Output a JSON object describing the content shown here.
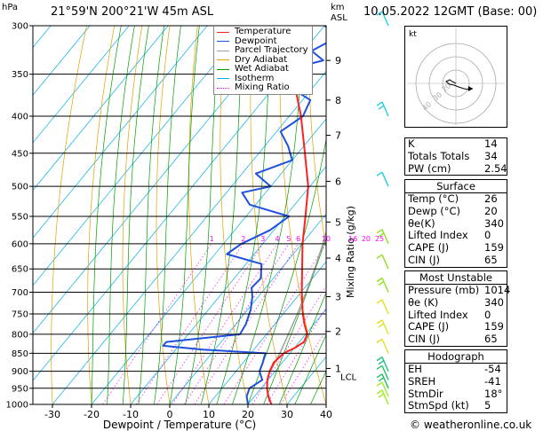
{
  "header": {
    "station": "21°59'N  200°21'W  45m  ASL",
    "datetime": "10.05.2022  12GMT  (Base: 00)",
    "pressure_unit": "hPa",
    "km_label": "km",
    "asl_label": "ASL"
  },
  "credit": "© weatheronline.co.uk",
  "colors": {
    "temperature": "#ff2020",
    "dewpoint": "#2050e0",
    "parcel": "#a0a0a0",
    "dry_adiabat": "#e0a000",
    "wet_adiabat": "#00a000",
    "isotherm": "#00b0f0",
    "mixing_ratio": "#ff00ff"
  },
  "legend": [
    {
      "label": "Temperature",
      "color": "#ff2020",
      "style": "solid"
    },
    {
      "label": "Dewpoint",
      "color": "#2050e0",
      "style": "solid"
    },
    {
      "label": "Parcel Trajectory",
      "color": "#a0a0a0",
      "style": "solid"
    },
    {
      "label": "Dry Adiabat",
      "color": "#e0a000",
      "style": "solid"
    },
    {
      "label": "Wet Adiabat",
      "color": "#00a000",
      "style": "solid"
    },
    {
      "label": "Isotherm",
      "color": "#00b0f0",
      "style": "solid"
    },
    {
      "label": "Mixing Ratio",
      "color": "#ff00ff",
      "style": "dot"
    }
  ],
  "chart_data": {
    "type": "line",
    "xlabel": "Dewpoint / Temperature (°C)",
    "ylabel": "",
    "right_axis_label": "Mixing Ratio (g/kg)",
    "xlim": [
      -35,
      40
    ],
    "x_ticks": [
      -30,
      -20,
      -10,
      0,
      10,
      20,
      30,
      40
    ],
    "ylim": [
      1000,
      300
    ],
    "y_scale": "log",
    "pressure_ticks": [
      300,
      350,
      400,
      450,
      500,
      550,
      600,
      650,
      700,
      750,
      800,
      850,
      900,
      950,
      1000
    ],
    "km_ticks": [
      {
        "km": "9",
        "p": 335
      },
      {
        "km": "8",
        "p": 380
      },
      {
        "km": "7",
        "p": 425
      },
      {
        "km": "6",
        "p": 492
      },
      {
        "km": "5",
        "p": 560
      },
      {
        "km": "4",
        "p": 628
      },
      {
        "km": "3",
        "p": 710
      },
      {
        "km": "2",
        "p": 793
      },
      {
        "km": "1",
        "p": 892
      }
    ],
    "lcl_label": "LCL",
    "lcl_p": 915,
    "mixing_ratio_labels": [
      "1",
      "2",
      "3",
      "4",
      "5",
      "6",
      "10",
      "16",
      "20",
      "25"
    ],
    "mixing_ratio_values": [
      1,
      2,
      3,
      4,
      5,
      6,
      10,
      16,
      20,
      25
    ],
    "series": [
      {
        "name": "Temperature",
        "p": [
          1000,
          975,
          950,
          925,
          900,
          875,
          850,
          835,
          820,
          800,
          775,
          750,
          700,
          650,
          600,
          550,
          500,
          450,
          400,
          350,
          300
        ],
        "t": [
          26,
          23.5,
          21.5,
          19.8,
          18.6,
          17.8,
          18.4,
          20.2,
          21.2,
          20.4,
          17.6,
          15,
          10.2,
          5.4,
          0.2,
          -4.8,
          -10.4,
          -18.2,
          -27,
          -38,
          -50
        ]
      },
      {
        "name": "Dewpoint",
        "p": [
          1000,
          975,
          950,
          925,
          900,
          875,
          860,
          850,
          840,
          830,
          820,
          800,
          775,
          740,
          710,
          690,
          670,
          640,
          620,
          600,
          575,
          550,
          530,
          510,
          500,
          480,
          460,
          440,
          420,
          400,
          380,
          350,
          335,
          325,
          310,
          300
        ],
        "t": [
          20,
          18,
          17,
          18.5,
          16,
          15,
          14.2,
          13.8,
          -3,
          -14,
          -14,
          3.2,
          2.6,
          0.8,
          -1.5,
          -3.6,
          -3.2,
          -6,
          -17,
          -15.4,
          -11,
          -9,
          -21.5,
          -26,
          -20,
          -26.5,
          -20,
          -24,
          -29,
          -26.5,
          -28,
          -44,
          -33,
          -38,
          -34,
          -40
        ]
      },
      {
        "name": "Parcel Trajectory",
        "p": [
          1000,
          950,
          915,
          850,
          800,
          750,
          700,
          650,
          600,
          550,
          500,
          450,
          400,
          350,
          300
        ],
        "t": [
          26,
          21.4,
          19.2,
          17.4,
          15.6,
          13.6,
          11.3,
          8.6,
          5.4,
          1.7,
          -2.7,
          -8.3,
          -15.3,
          -24.6,
          -36
        ]
      }
    ]
  },
  "hodograph": {
    "label": "kt",
    "ring_labels": [
      "40",
      "30",
      "20"
    ]
  },
  "wind_barbs_note": "",
  "indices": {
    "rows": [
      {
        "label": "K",
        "value": "14"
      },
      {
        "label": "Totals Totals",
        "value": "34"
      },
      {
        "label": "PW (cm)",
        "value": "2.54"
      }
    ]
  },
  "surface": {
    "title": "Surface",
    "rows": [
      {
        "label": "Temp (°C)",
        "value": "26"
      },
      {
        "label": "Dewp (°C)",
        "value": "20"
      },
      {
        "label": "θe(K)",
        "value": "340"
      },
      {
        "label": "Lifted Index",
        "value": "0"
      },
      {
        "label": "CAPE (J)",
        "value": "159"
      },
      {
        "label": "CIN (J)",
        "value": "65"
      }
    ]
  },
  "most_unstable": {
    "title": "Most Unstable",
    "rows": [
      {
        "label": "Pressure (mb)",
        "value": "1014"
      },
      {
        "label": "θe (K)",
        "value": "340"
      },
      {
        "label": "Lifted Index",
        "value": "0"
      },
      {
        "label": "CAPE (J)",
        "value": "159"
      },
      {
        "label": "CIN (J)",
        "value": "65"
      }
    ]
  },
  "hodograph_table": {
    "title": "Hodograph",
    "rows": [
      {
        "label": "EH",
        "value": "-54"
      },
      {
        "label": "SREH",
        "value": "-41"
      },
      {
        "label": "StmDir",
        "value": "18°"
      },
      {
        "label": "StmSpd (kt)",
        "value": "5"
      }
    ]
  }
}
